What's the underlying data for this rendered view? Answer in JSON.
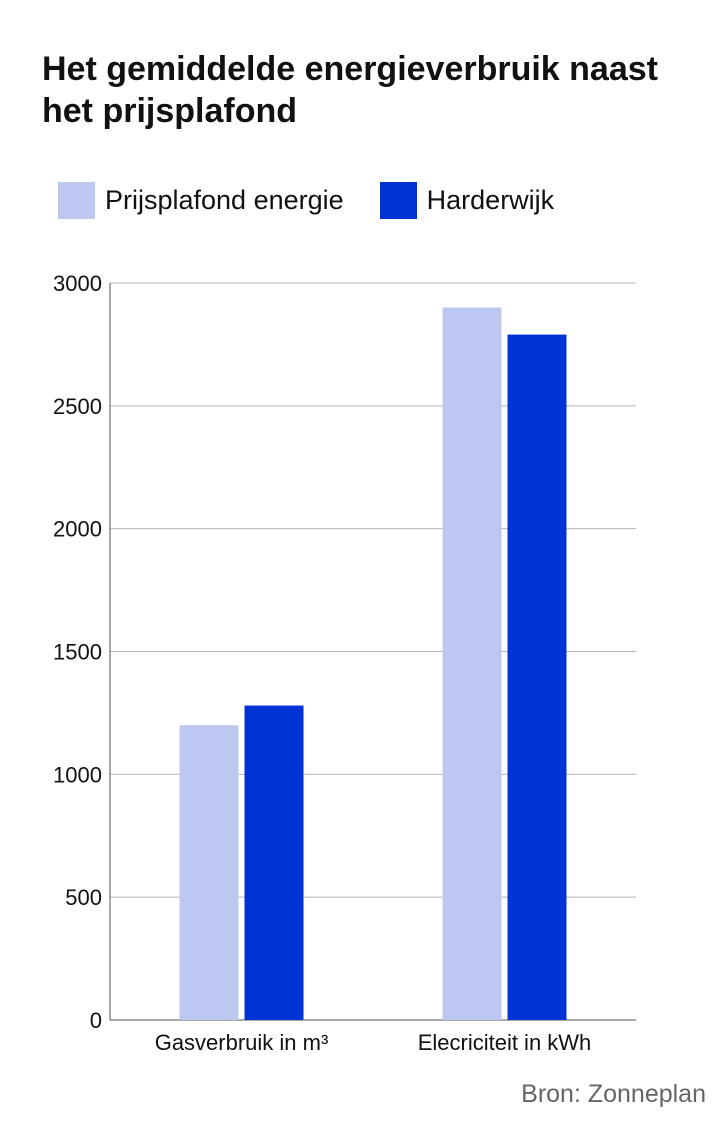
{
  "chart_data": {
    "type": "bar",
    "title": "Het gemiddelde energieverbruik naast het prijsplafond",
    "categories": [
      "Gasverbruik in m³",
      "Elecriciteit in kWh"
    ],
    "series": [
      {
        "name": "Prijsplafond energie",
        "color": "#bcc8ef",
        "values": [
          1200,
          2900
        ]
      },
      {
        "name": "Harderwijk",
        "color": "#0033d6",
        "values": [
          1280,
          2790
        ]
      }
    ],
    "ylim": [
      0,
      3000
    ],
    "yticks": [
      "0",
      "500",
      "1000",
      "1500",
      "2000",
      "2500",
      "3000"
    ],
    "grid": true,
    "legend": "top-left"
  },
  "source": "Bron: Zonneplan"
}
